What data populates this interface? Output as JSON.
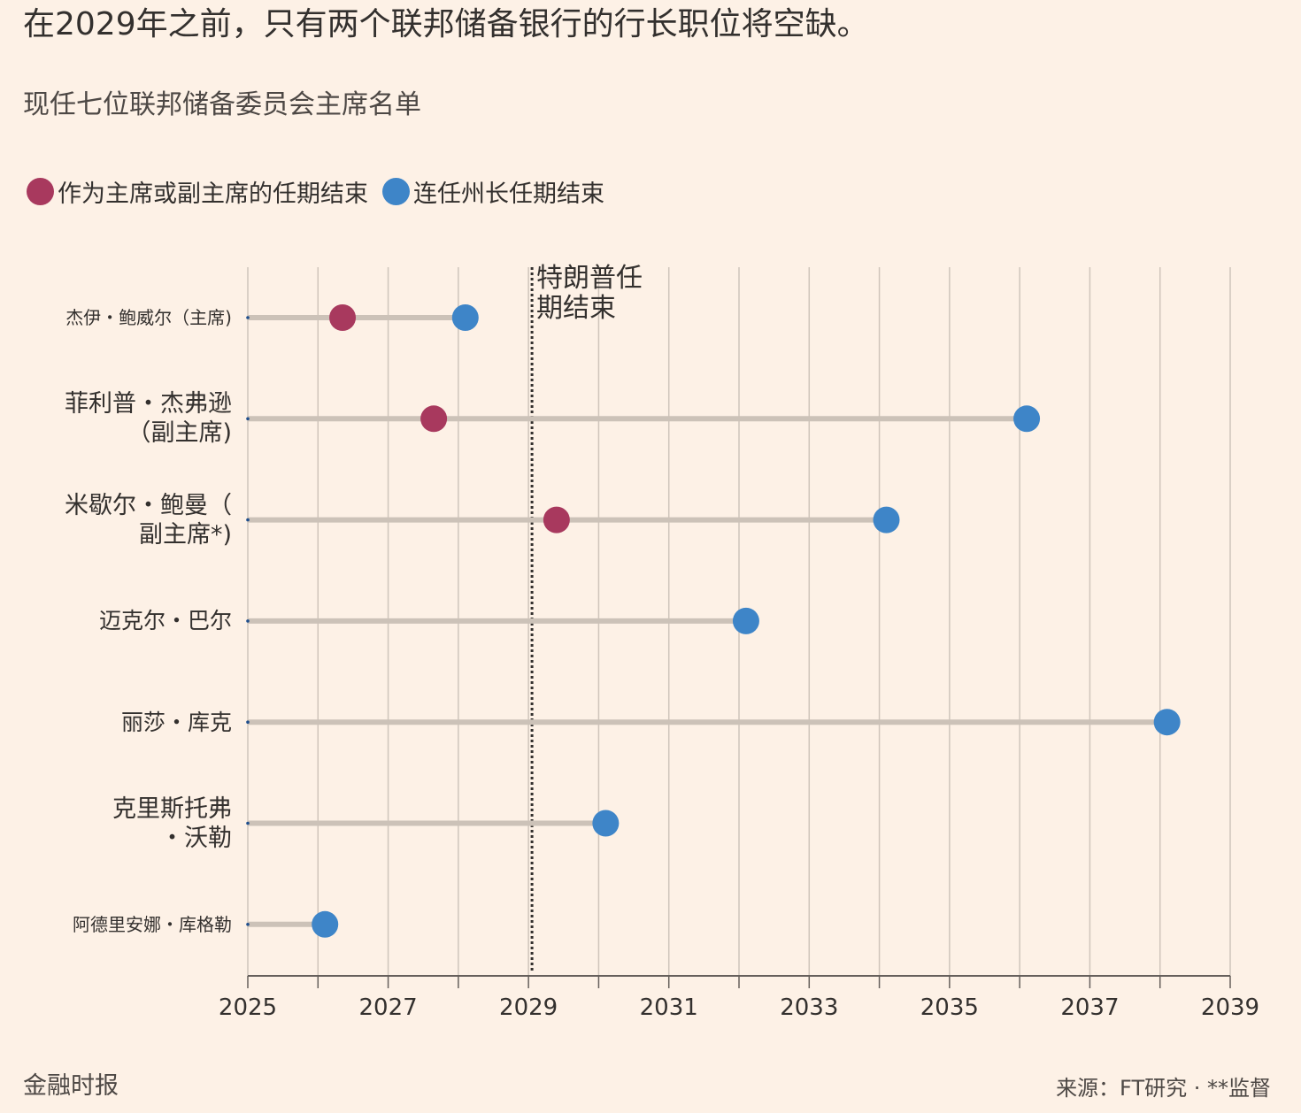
{
  "title": "在2029年之前，只有两个联邦储备银行的行长职位将空缺。",
  "subtitle": "现任七位联邦储备委员会主席名单",
  "legend": [
    {
      "label": "作为主席或副主席的任期结束",
      "color": "#a8395e",
      "icon": "circle"
    },
    {
      "label": "连任州长任期结束",
      "color": "#3e85c8",
      "icon": "circle"
    }
  ],
  "footer": {
    "left": "金融时报",
    "right": "来源：FT研究 · **监督"
  },
  "chart_data": {
    "type": "scatter",
    "title": "在2029年之前，只有两个联邦储备银行的行长职位将空缺。",
    "subtitle": "现任七位联邦储备委员会主席名单",
    "x_axis": {
      "min": 2025,
      "max": 2039,
      "ticks": [
        "2025",
        "2027",
        "2029",
        "2031",
        "2033",
        "2035",
        "2037",
        "2039"
      ]
    },
    "grid": true,
    "legend_position": "top-left",
    "annotation": {
      "label": "特朗普任\n期结束",
      "x": 2029.05
    },
    "series": [
      {
        "name": "作为主席或副主席的任期结束",
        "color": "#a8395e"
      },
      {
        "name": "连任州长任期结束",
        "color": "#3e85c8"
      }
    ],
    "rows": [
      {
        "label": "杰伊・鲍威尔（主席)",
        "chair_end": 2026.35,
        "governor_end": 2028.1
      },
      {
        "label": "菲利普・杰弗逊\n（副主席)",
        "chair_end": 2027.65,
        "governor_end": 2036.1
      },
      {
        "label": "米歇尔・鲍曼（\n副主席*)",
        "chair_end": 2029.4,
        "governor_end": 2034.1
      },
      {
        "label": "迈克尔・巴尔",
        "chair_end": null,
        "governor_end": 2032.1
      },
      {
        "label": "丽莎・库克",
        "chair_end": null,
        "governor_end": 2038.1
      },
      {
        "label": "克里斯托弗\n・沃勒",
        "chair_end": null,
        "governor_end": 2030.1
      },
      {
        "label": "阿德里安娜・库格勒",
        "chair_end": null,
        "governor_end": 2026.1
      }
    ]
  }
}
